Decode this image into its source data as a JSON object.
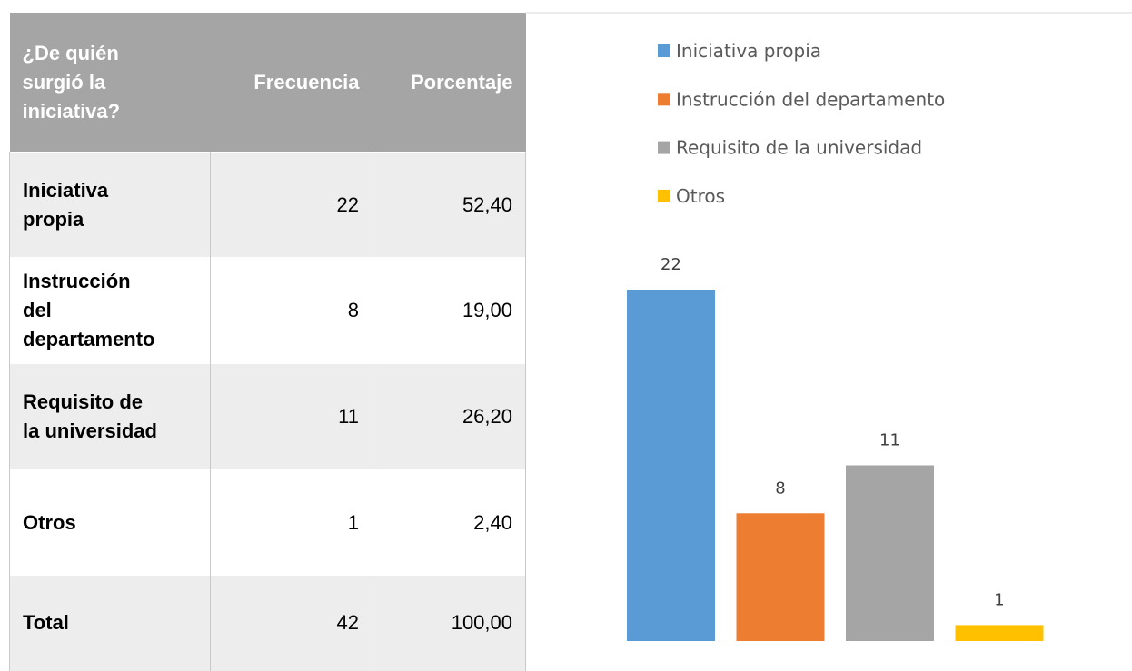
{
  "table": {
    "header": [
      "¿De quién surgió la iniciativa?",
      "Frecuencia",
      "Porcentaje"
    ],
    "rows": [
      [
        "Iniciativa propia",
        22,
        "52,40"
      ],
      [
        "Instrucción del departamento",
        8,
        "19,00"
      ],
      [
        "Requisito de la universidad",
        11,
        "26,20"
      ],
      [
        "Otros",
        1,
        "2,40"
      ],
      [
        "Total",
        42,
        "100,00"
      ]
    ]
  },
  "chart_data": {
    "type": "bar",
    "categories": [
      "Iniciativa propia",
      "Instrucción del departamento",
      "Requisito de la universidad",
      "Otros"
    ],
    "values": [
      22,
      8,
      11,
      1
    ],
    "colors": [
      "#5b9bd5",
      "#ed7d31",
      "#a5a5a5",
      "#ffc000"
    ],
    "legend": "top"
  }
}
